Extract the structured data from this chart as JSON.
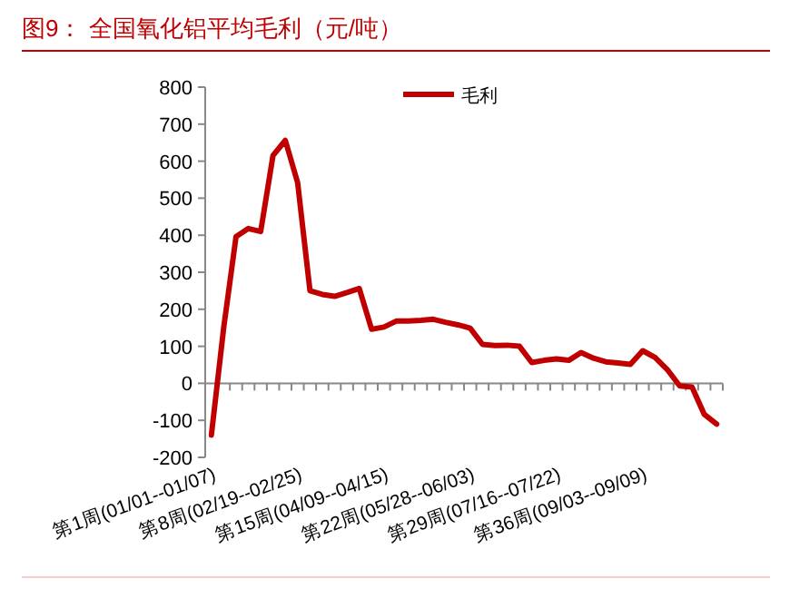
{
  "chart_data": {
    "type": "line",
    "title": "图9：  全国氧化铝平均毛利（元/吨）",
    "categories": [
      "第1周(01/01--01/07)",
      null,
      null,
      null,
      null,
      null,
      null,
      "第8周(02/19--02/25)",
      null,
      null,
      null,
      null,
      null,
      null,
      "第15周(04/09--04/15)",
      null,
      null,
      null,
      null,
      null,
      null,
      "第22周(05/28--06/03)",
      null,
      null,
      null,
      null,
      null,
      null,
      "第29周(07/16--07/22)",
      null,
      null,
      null,
      null,
      null,
      null,
      "第36周(09/03--09/09)",
      null,
      null,
      null,
      null,
      null,
      null
    ],
    "series": [
      {
        "name": "毛利",
        "color": "#c00000",
        "values": [
          -140,
          150,
          396,
          418,
          410,
          615,
          656,
          542,
          250,
          240,
          235,
          245,
          256,
          146,
          152,
          168,
          168,
          170,
          173,
          165,
          158,
          149,
          105,
          102,
          103,
          100,
          56,
          62,
          66,
          62,
          83,
          68,
          58,
          55,
          51,
          88,
          70,
          37,
          -7,
          -10,
          -84,
          -110
        ]
      }
    ],
    "ylim": [
      -200,
      800
    ],
    "yticks": [
      -200,
      -100,
      0,
      100,
      200,
      300,
      400,
      500,
      600,
      700,
      800
    ],
    "legend": "top right",
    "marker": "none",
    "line_style": "solid"
  }
}
